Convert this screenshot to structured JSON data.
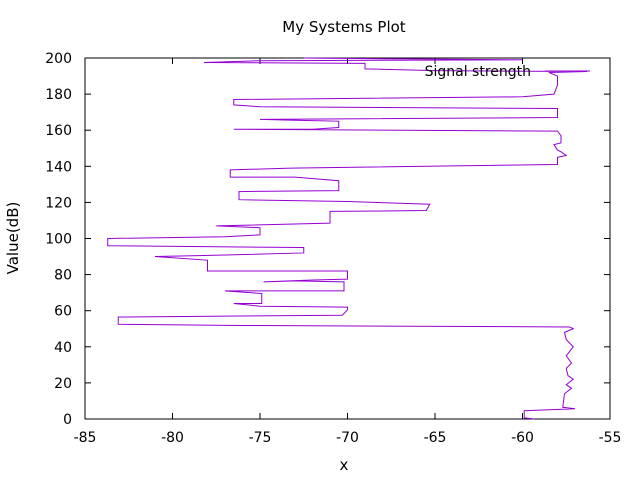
{
  "chart_data": {
    "type": "line",
    "title": "My Systems Plot",
    "xlabel": "x",
    "ylabel": "Value(dB)",
    "xlim": [
      -85,
      -55
    ],
    "ylim": [
      0,
      200
    ],
    "x_ticks": [
      "-85",
      "-80",
      "-75",
      "-70",
      "-65",
      "-60",
      "-55"
    ],
    "y_ticks": [
      "0",
      "20",
      "40",
      "60",
      "80",
      "100",
      "120",
      "140",
      "160",
      "180",
      "200"
    ],
    "grid": false,
    "legend_position": "top-right",
    "series": [
      {
        "name": "Signal strength",
        "color": "#9400d3",
        "points": [
          [
            -59.3,
            0
          ],
          [
            -59.9,
            0.6
          ],
          [
            -59.9,
            4.6
          ],
          [
            -57.0,
            5.7
          ],
          [
            -57.7,
            6.5
          ],
          [
            -57.6,
            14
          ],
          [
            -57.2,
            17
          ],
          [
            -57.5,
            19
          ],
          [
            -57.1,
            22
          ],
          [
            -57.4,
            24
          ],
          [
            -57.5,
            28
          ],
          [
            -57.2,
            31
          ],
          [
            -57.5,
            35
          ],
          [
            -57.1,
            40
          ],
          [
            -57.5,
            44
          ],
          [
            -57.6,
            48
          ],
          [
            -57.1,
            50
          ],
          [
            -57.3,
            51
          ],
          [
            -76.0,
            51.8
          ],
          [
            -83.1,
            52.5
          ],
          [
            -83.1,
            56.5
          ],
          [
            -70.3,
            57.5
          ],
          [
            -70.0,
            60.5
          ],
          [
            -70.0,
            62
          ],
          [
            -75.0,
            62.5
          ],
          [
            -76.5,
            64
          ],
          [
            -74.9,
            64
          ],
          [
            -74.9,
            69.5
          ],
          [
            -77.0,
            71
          ],
          [
            -70.2,
            71
          ],
          [
            -70.2,
            76
          ],
          [
            -73.0,
            76.5
          ],
          [
            -74.8,
            76
          ],
          [
            -72.0,
            77
          ],
          [
            -70.0,
            77.5
          ],
          [
            -70.0,
            82
          ],
          [
            -78.0,
            82
          ],
          [
            -78.0,
            85
          ],
          [
            -78.0,
            88
          ],
          [
            -81.0,
            90
          ],
          [
            -78.5,
            90.5
          ],
          [
            -72.5,
            92
          ],
          [
            -72.5,
            95
          ],
          [
            -83.7,
            96
          ],
          [
            -83.7,
            100
          ],
          [
            -77.0,
            101
          ],
          [
            -75.0,
            102
          ],
          [
            -75.0,
            106
          ],
          [
            -77.5,
            107
          ],
          [
            -71.0,
            108.5
          ],
          [
            -71.0,
            115
          ],
          [
            -65.5,
            115.5
          ],
          [
            -65.3,
            119
          ],
          [
            -70.0,
            120.5
          ],
          [
            -76.2,
            121.5
          ],
          [
            -76.2,
            126
          ],
          [
            -70.5,
            126.5
          ],
          [
            -70.5,
            132
          ],
          [
            -73.0,
            134
          ],
          [
            -76.7,
            134
          ],
          [
            -76.7,
            138
          ],
          [
            -73.2,
            139
          ],
          [
            -58.0,
            141
          ],
          [
            -58.0,
            145
          ],
          [
            -57.5,
            146
          ],
          [
            -57.8,
            148
          ],
          [
            -58.0,
            149
          ],
          [
            -58.2,
            152
          ],
          [
            -57.8,
            153
          ],
          [
            -57.8,
            157
          ],
          [
            -58.0,
            159.5
          ],
          [
            -76.5,
            160.5
          ],
          [
            -72.0,
            160.5
          ],
          [
            -70.5,
            161.5
          ],
          [
            -70.5,
            165
          ],
          [
            -73.0,
            165.5
          ],
          [
            -75.0,
            166
          ],
          [
            -58.0,
            167
          ],
          [
            -58.0,
            172
          ],
          [
            -75.0,
            173
          ],
          [
            -76.5,
            174
          ],
          [
            -76.5,
            177
          ],
          [
            -60.0,
            178.5
          ],
          [
            -58.2,
            180
          ],
          [
            -58.0,
            185
          ],
          [
            -58.0,
            188
          ],
          [
            -58.0,
            190
          ],
          [
            -58.5,
            192
          ],
          [
            -56.3,
            192.5
          ],
          [
            -65.0,
            193
          ],
          [
            -69.0,
            194
          ],
          [
            -69.0,
            197
          ],
          [
            -78.2,
            197.5
          ],
          [
            -75.0,
            198.5
          ],
          [
            -60.0,
            199
          ],
          [
            -67.0,
            199.5
          ],
          [
            -72.5,
            200
          ]
        ]
      }
    ]
  }
}
